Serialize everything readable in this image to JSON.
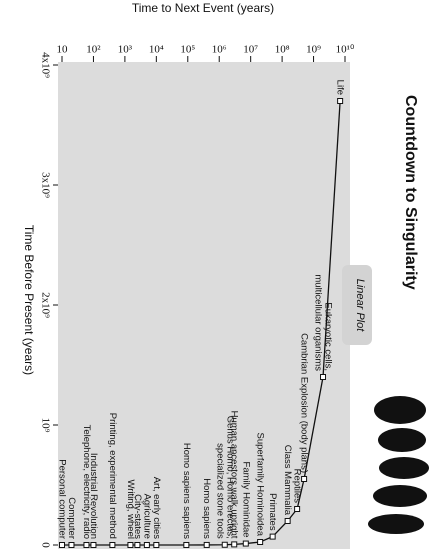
{
  "chart_data": {
    "type": "line",
    "log_y": true,
    "title": "Countdown to Singularity",
    "subtitle": "Linear Plot",
    "xlabel": "Time Before Present (years)",
    "ylabel": "Time to Next Event (years)",
    "xlim": [
      4000000000,
      0
    ],
    "ylim": [
      10,
      10000000000
    ],
    "xticks": [
      {
        "value": 4000000000,
        "label": "4x10⁹"
      },
      {
        "value": 3000000000,
        "label": "3x10⁹"
      },
      {
        "value": 2000000000,
        "label": "2x10⁹"
      },
      {
        "value": 1000000000,
        "label": "10⁹"
      },
      0
    ],
    "yticks": [
      10,
      {
        "value": 100,
        "label": "10²"
      },
      {
        "value": 1000,
        "label": "10³"
      },
      {
        "value": 10000,
        "label": "10⁴"
      },
      {
        "value": 100000,
        "label": "10⁵"
      },
      {
        "value": 1000000,
        "label": "10⁶"
      },
      {
        "value": 10000000,
        "label": "10⁷"
      },
      {
        "value": 100000000,
        "label": "10⁸"
      },
      {
        "value": 1000000000,
        "label": "10⁹"
      },
      {
        "value": 10000000000,
        "label": "10¹⁰"
      }
    ],
    "color": "#111111",
    "points": [
      {
        "labels": [
          "Life"
        ],
        "x": 3700000000,
        "y": 7000000000
      },
      {
        "labels": [
          "Eukaryotic cells,",
          "multicellular organisms"
        ],
        "x": 1400000000,
        "y": 2000000000
      },
      {
        "labels": [
          "Cambrian Explosion (body plans)"
        ],
        "x": 550000000,
        "y": 500000000
      },
      {
        "labels": [
          "Reptiles"
        ],
        "x": 300000000,
        "y": 300000000
      },
      {
        "labels": [
          "Class Mammalia"
        ],
        "x": 200000000,
        "y": 150000000
      },
      {
        "labels": [
          "Primates"
        ],
        "x": 70000000,
        "y": 50000000
      },
      {
        "labels": [
          "Superfamily Hominoidea"
        ],
        "x": 25000000,
        "y": 20000000
      },
      {
        "labels": [
          "Family Hominidae"
        ],
        "x": 12000000,
        "y": 7000000
      },
      {
        "labels": [
          "Human ancestors walk upright"
        ],
        "x": 5000000,
        "y": 3000000
      },
      {
        "labels": [
          "Genus Homo, Homo erectus,",
          "specialized stone tools"
        ],
        "x": 2000000,
        "y": 1500000
      },
      {
        "labels": [
          "Homo sapiens"
        ],
        "x": 500000,
        "y": 400000
      },
      {
        "labels": [
          "Homo sapiens sapiens"
        ],
        "x": 100000,
        "y": 90000
      },
      {
        "labels": [
          "Art, early cities"
        ],
        "x": 15000,
        "y": 10000
      },
      {
        "labels": [
          "Agriculture"
        ],
        "x": 10000,
        "y": 5000
      },
      {
        "labels": [
          "City-states"
        ],
        "x": 5000,
        "y": 2500
      },
      {
        "labels": [
          "Writing, wheel"
        ],
        "x": 3500,
        "y": 1500
      },
      {
        "labels": [
          "Printing, experimental method"
        ],
        "x": 500,
        "y": 400
      },
      {
        "labels": [
          "Industrial Revolution"
        ],
        "x": 200,
        "y": 100
      },
      {
        "labels": [
          "Telephone, electricity, radio"
        ],
        "x": 100,
        "y": 60
      },
      {
        "labels": [
          "Computer"
        ],
        "x": 50,
        "y": 20
      },
      {
        "labels": [
          "Personal computer"
        ],
        "x": 20,
        "y": 10
      }
    ]
  }
}
